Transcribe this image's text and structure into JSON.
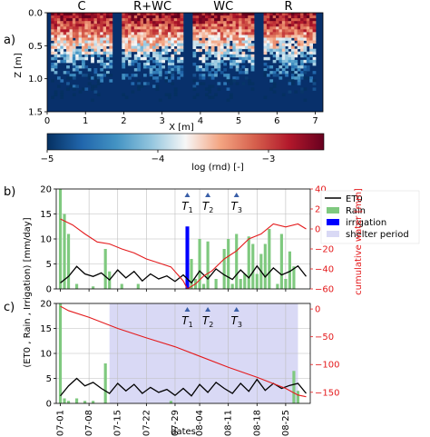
{
  "chart_data": [
    {
      "type": "heatmap",
      "panel_label": "a)",
      "region_labels": [
        "C",
        "R+WC",
        "WC",
        "R"
      ],
      "xlabel": "X [m]",
      "ylabel": "Z [m]",
      "xlim": [
        0,
        7.2
      ],
      "ylim": [
        1.5,
        0.0
      ],
      "xticks": [
        "0",
        "1",
        "2",
        "3",
        "4",
        "5",
        "6",
        "7"
      ],
      "yticks": [
        "0.0",
        "0.5",
        "1.0",
        "1.5"
      ],
      "colorbar": {
        "label": "log (rnd) [-]",
        "range": [
          -5,
          -2.5
        ],
        "ticks": [
          "-5",
          "-4",
          "-3"
        ],
        "colormap": "RdBu_r",
        "colors": [
          "#053061",
          "#2166ac",
          "#4393c3",
          "#92c5de",
          "#f7f7f7",
          "#f4a582",
          "#d6604d",
          "#b2182b",
          "#67001f"
        ]
      },
      "background": "#08306b"
    },
    {
      "type": "bar",
      "panel_label": "b)",
      "xlim": [
        "06-30",
        "08-31"
      ],
      "ylim_left": [
        0,
        20
      ],
      "yticks_left": [
        "0",
        "5",
        "10",
        "15",
        "20"
      ],
      "ylabel_left": "(ET0 , Rain , Irrigation) [mm/day]",
      "ylim_right": [
        -60,
        40
      ],
      "yticks_right": [
        "-60",
        "-40",
        "-20",
        "0",
        "20",
        "40"
      ],
      "ylabel_right": "cumulative water [mm]",
      "grid": true,
      "legend": {
        "placement": "right",
        "entries": [
          "ET0",
          "Rain",
          "irrigation",
          "shelter period"
        ]
      },
      "series": [
        {
          "name": "Rain",
          "color": "#7fc97f",
          "type": "bar",
          "x": [
            "07-01",
            "07-02",
            "07-03",
            "07-05",
            "07-09",
            "07-12",
            "07-13",
            "07-16",
            "07-20",
            "08-01",
            "08-02",
            "08-03",
            "08-04",
            "08-05",
            "08-06",
            "08-08",
            "08-10",
            "08-11",
            "08-12",
            "08-13",
            "08-14",
            "08-15",
            "08-16",
            "08-17",
            "08-18",
            "08-19",
            "08-20",
            "08-21",
            "08-23",
            "08-24",
            "08-25",
            "08-26",
            "08-27"
          ],
          "values": [
            20,
            15,
            11,
            1,
            0.5,
            8,
            3.5,
            1,
            1,
            5,
            6,
            2,
            10,
            1,
            9.5,
            2,
            8,
            10,
            1,
            11,
            2,
            3,
            10.5,
            9,
            3,
            7,
            9,
            12,
            1,
            11,
            2,
            7.5,
            4.5
          ]
        },
        {
          "name": "irrigation",
          "color": "#0000ff",
          "type": "bar",
          "x": [
            "08-01"
          ],
          "values": [
            12.5
          ]
        },
        {
          "name": "ET0",
          "color": "#000000",
          "type": "line",
          "x": [
            "07-01",
            "07-03",
            "07-05",
            "07-07",
            "07-09",
            "07-11",
            "07-13",
            "07-15",
            "07-17",
            "07-19",
            "07-21",
            "07-23",
            "07-25",
            "07-27",
            "07-29",
            "07-31",
            "08-02",
            "08-04",
            "08-06",
            "08-08",
            "08-10",
            "08-12",
            "08-14",
            "08-16",
            "08-18",
            "08-20",
            "08-22",
            "08-24",
            "08-26",
            "08-28",
            "08-30"
          ],
          "values": [
            1.2,
            2.5,
            4.5,
            3.0,
            2.5,
            3.2,
            1.8,
            3.8,
            2.2,
            3.5,
            1.6,
            3.0,
            2.0,
            2.6,
            1.5,
            2.8,
            1.2,
            3.6,
            2.0,
            4.0,
            2.8,
            1.9,
            3.8,
            2.2,
            4.6,
            2.4,
            4.2,
            2.8,
            3.5,
            4.6,
            2.5
          ]
        },
        {
          "name": "cumulative water",
          "color": "#e41a1c",
          "type": "line",
          "axis": "right",
          "x": [
            "07-01",
            "07-04",
            "07-07",
            "07-10",
            "07-13",
            "07-16",
            "07-19",
            "07-22",
            "07-25",
            "07-28",
            "07-31",
            "08-01",
            "08-03",
            "08-05",
            "08-07",
            "08-10",
            "08-13",
            "08-16",
            "08-19",
            "08-22",
            "08-25",
            "08-28",
            "08-30"
          ],
          "values": [
            10,
            4,
            -5,
            -13,
            -15,
            -20,
            -24,
            -30,
            -34,
            -38,
            -52,
            -60,
            -55,
            -47,
            -42,
            -30,
            -22,
            -10,
            -5,
            5,
            2,
            5,
            0
          ]
        }
      ],
      "annotations": [
        {
          "text": "T1",
          "x": "08-01"
        },
        {
          "text": "T2",
          "x": "08-06"
        },
        {
          "text": "T3",
          "x": "08-13"
        }
      ]
    },
    {
      "type": "bar",
      "panel_label": "c)",
      "xlim": [
        "06-30",
        "08-31"
      ],
      "ylim_left": [
        0,
        20
      ],
      "yticks_left": [
        "0",
        "5",
        "10",
        "15",
        "20"
      ],
      "ylim_right": [
        -170,
        10
      ],
      "yticks_right": [
        "0",
        "-50",
        "-100",
        "-150"
      ],
      "xticks": [
        "07-01",
        "07-08",
        "07-15",
        "07-22",
        "07-29",
        "08-04",
        "08-11",
        "08-18",
        "08-25"
      ],
      "xlabel": "dates",
      "grid": true,
      "shelter_period": [
        "07-13",
        "08-28"
      ],
      "shelter_color": "#d9d9f5",
      "series": [
        {
          "name": "Rain",
          "color": "#7fc97f",
          "type": "bar",
          "x": [
            "07-01",
            "07-02",
            "07-03",
            "07-05",
            "07-07",
            "07-09",
            "07-12",
            "07-28",
            "08-27",
            "08-28"
          ],
          "values": [
            20,
            1,
            0.5,
            1,
            0.5,
            0.5,
            8,
            0.5,
            6.5,
            2.5
          ]
        },
        {
          "name": "ET0",
          "color": "#000000",
          "type": "line",
          "x": [
            "07-01",
            "07-03",
            "07-05",
            "07-07",
            "07-09",
            "07-11",
            "07-13",
            "07-15",
            "07-17",
            "07-19",
            "07-21",
            "07-23",
            "07-25",
            "07-27",
            "07-29",
            "07-31",
            "08-02",
            "08-04",
            "08-06",
            "08-08",
            "08-10",
            "08-12",
            "08-14",
            "08-16",
            "08-18",
            "08-20",
            "08-22",
            "08-24",
            "08-26",
            "08-28",
            "08-30"
          ],
          "values": [
            1.5,
            3.5,
            5.0,
            3.5,
            4.2,
            3.0,
            2.0,
            4.0,
            2.5,
            3.8,
            2.0,
            3.2,
            2.2,
            2.8,
            1.6,
            3.0,
            1.5,
            3.8,
            2.2,
            4.2,
            3.0,
            2.0,
            4.0,
            2.4,
            4.8,
            2.6,
            4.0,
            3.0,
            3.6,
            4.0,
            2.0
          ]
        },
        {
          "name": "cumulative water",
          "color": "#e41a1c",
          "type": "line",
          "axis": "right",
          "x": [
            "07-01",
            "07-03",
            "07-08",
            "07-15",
            "07-22",
            "07-29",
            "08-04",
            "08-11",
            "08-18",
            "08-25",
            "08-28",
            "08-30"
          ],
          "values": [
            5,
            -3,
            -15,
            -35,
            -52,
            -68,
            -85,
            -105,
            -123,
            -143,
            -155,
            -158
          ]
        }
      ],
      "annotations": [
        {
          "text": "T1",
          "x": "08-01"
        },
        {
          "text": "T2",
          "x": "08-06"
        },
        {
          "text": "T3",
          "x": "08-13"
        }
      ]
    }
  ]
}
